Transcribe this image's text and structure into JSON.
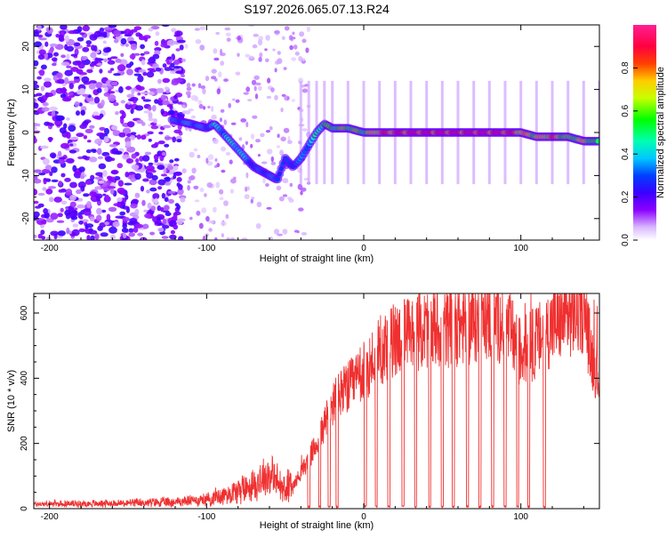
{
  "title": "S197.2026.065.07.13.R24",
  "chart_data": [
    {
      "type": "heatmap",
      "xlabel": "Height of straight line (km)",
      "ylabel": "Frequency (Hz)",
      "xlim": [
        -210,
        150
      ],
      "ylim": [
        -25,
        25
      ],
      "xticks": [
        -200,
        -100,
        0,
        100
      ],
      "xtick_labels": [
        "-200",
        "-100",
        "0",
        "100"
      ],
      "yticks": [
        -20,
        -10,
        0,
        10,
        20
      ],
      "ytick_labels": [
        "-20",
        "-10",
        "0",
        "10",
        "20"
      ],
      "colorbar": {
        "label": "Normalized spectral amplitude",
        "range": [
          0,
          1
        ],
        "ticks": [
          0,
          0.2,
          0.4,
          0.6,
          0.8
        ],
        "tick_labels": [
          "0.0",
          "0.2",
          "0.4",
          "0.6",
          "0.8"
        ]
      },
      "signal_track": {
        "x": [
          -122,
          -110,
          -100,
          -95,
          -90,
          -85,
          -80,
          -75,
          -70,
          -65,
          -60,
          -55,
          -50,
          -45,
          -40,
          -35,
          -30,
          -25,
          -20,
          -10,
          0,
          10,
          20,
          30,
          40,
          50,
          60,
          70,
          80,
          90,
          100,
          110,
          120,
          130,
          140,
          150
        ],
        "frequency": [
          3,
          2,
          1,
          2,
          0,
          -2,
          -4,
          -6,
          -8,
          -9,
          -10,
          -11,
          -6,
          -8,
          -6,
          -3,
          0,
          2,
          1,
          1,
          0,
          0,
          0,
          0,
          0,
          0,
          0,
          0,
          0,
          0,
          0,
          -1,
          -1,
          -1,
          -2,
          -2
        ],
        "amplitude": [
          0.35,
          0.4,
          0.35,
          0.45,
          0.4,
          0.45,
          0.45,
          0.4,
          0.3,
          0.35,
          0.35,
          0.35,
          0.3,
          0.35,
          0.35,
          0.4,
          0.5,
          0.6,
          0.6,
          0.65,
          0.6,
          0.85,
          0.9,
          0.95,
          0.95,
          0.95,
          0.95,
          0.95,
          0.95,
          0.95,
          0.8,
          0.7,
          0.85,
          0.6,
          0.75,
          0.5
        ]
      }
    },
    {
      "type": "line",
      "xlabel": "Height of straight line (km)",
      "ylabel": "SNR (10 * v/v)",
      "xlim": [
        -210,
        150
      ],
      "ylim": [
        0,
        660
      ],
      "xticks": [
        -200,
        -100,
        0,
        100
      ],
      "xtick_labels": [
        "-200",
        "-100",
        "0",
        "100"
      ],
      "yticks": [
        0,
        200,
        400,
        600
      ],
      "ytick_labels": [
        "0",
        "200",
        "400",
        "600"
      ],
      "color": "#f03030",
      "envelope": {
        "x": [
          -210,
          -150,
          -120,
          -100,
          -80,
          -70,
          -60,
          -50,
          -45,
          -40,
          -35,
          -30,
          -25,
          -20,
          -15,
          -10,
          -5,
          0,
          10,
          20,
          30,
          40,
          50,
          60,
          70,
          80,
          90,
          100,
          110,
          120,
          130,
          140,
          145,
          150
        ],
        "snr": [
          10,
          12,
          15,
          20,
          40,
          55,
          75,
          40,
          70,
          110,
          150,
          200,
          260,
          320,
          350,
          370,
          390,
          420,
          480,
          520,
          540,
          550,
          550,
          560,
          570,
          575,
          570,
          480,
          510,
          560,
          590,
          610,
          470,
          400
        ]
      },
      "dropouts_x": [
        -35,
        -28,
        -22,
        -17,
        1,
        8,
        16,
        25,
        33,
        42,
        50,
        57,
        66,
        74,
        82,
        90,
        98,
        105,
        115
      ]
    }
  ]
}
